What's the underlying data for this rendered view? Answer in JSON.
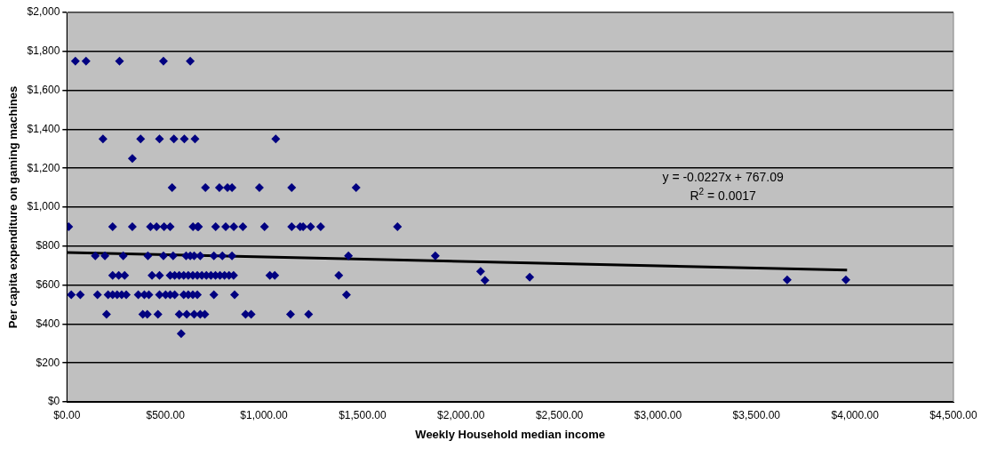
{
  "chart_data": {
    "type": "scatter",
    "xlabel": "Weekly Household median income",
    "ylabel": "Per capita expenditure on gaming machines",
    "series": [
      {
        "color": "#000080",
        "marker": "diamond",
        "x": [
          43,
          97,
          267,
          490,
          626,
          183,
          374,
          470,
          543,
          596,
          650,
          1060,
          332,
          534,
          703,
          774,
          815,
          838,
          977,
          1141,
          1468,
          9,
          232,
          332,
          424,
          455,
          493,
          524,
          640,
          663,
          668,
          755,
          806,
          847,
          893,
          1003,
          1141,
          1184,
          1199,
          1237,
          1288,
          1678,
          144,
          193,
          286,
          411,
          490,
          539,
          605,
          626,
          646,
          677,
          746,
          789,
          838,
          1429,
          1870,
          232,
          263,
          293,
          432,
          470,
          524,
          547,
          570,
          593,
          616,
          639,
          662,
          685,
          708,
          731,
          754,
          777,
          800,
          823,
          846,
          1030,
          1055,
          1380,
          22,
          68,
          155,
          209,
          232,
          255,
          278,
          301,
          362,
          393,
          416,
          470,
          501,
          524,
          547,
          593,
          616,
          639,
          662,
          746,
          851,
          1419,
          201,
          385,
          408,
          462,
          570,
          608,
          646,
          677,
          700,
          907,
          935,
          1135,
          1227,
          580,
          2100,
          2122,
          2349,
          3656,
          3954
        ],
        "values": [
          1750,
          1750,
          1750,
          1750,
          1750,
          1350,
          1350,
          1350,
          1350,
          1350,
          1350,
          1350,
          1250,
          1100,
          1100,
          1100,
          1100,
          1100,
          1100,
          1100,
          1100,
          900,
          900,
          900,
          900,
          900,
          900,
          900,
          900,
          900,
          900,
          900,
          900,
          900,
          900,
          900,
          900,
          900,
          900,
          900,
          900,
          900,
          750,
          750,
          750,
          750,
          750,
          750,
          750,
          750,
          750,
          750,
          750,
          750,
          750,
          750,
          750,
          650,
          650,
          650,
          650,
          650,
          650,
          650,
          650,
          650,
          650,
          650,
          650,
          650,
          650,
          650,
          650,
          650,
          650,
          650,
          650,
          650,
          650,
          650,
          550,
          550,
          550,
          550,
          550,
          550,
          550,
          550,
          550,
          550,
          550,
          550,
          550,
          550,
          550,
          550,
          550,
          550,
          550,
          550,
          550,
          550,
          450,
          450,
          450,
          450,
          450,
          450,
          450,
          450,
          450,
          450,
          450,
          450,
          450,
          350,
          670,
          625,
          640,
          627,
          627
        ]
      },
      {
        "type": "line",
        "color": "#000000",
        "marker": "none",
        "x": [
          0,
          3960
        ],
        "values": [
          767,
          677
        ]
      }
    ],
    "xlim": [
      0,
      4500
    ],
    "xticks": [
      {
        "value": 0,
        "label": "$0.00"
      },
      {
        "value": 500,
        "label": "$500.00"
      },
      {
        "value": 1000,
        "label": "$1,000.00"
      },
      {
        "value": 1500,
        "label": "$1,500.00"
      },
      {
        "value": 2000,
        "label": "$2,000.00"
      },
      {
        "value": 2500,
        "label": "$2,500.00"
      },
      {
        "value": 3000,
        "label": "$3,000.00"
      },
      {
        "value": 3500,
        "label": "$3,500.00"
      },
      {
        "value": 4000,
        "label": "$4,000.00"
      },
      {
        "value": 4500,
        "label": "$4,500.00"
      }
    ],
    "ylim": [
      0,
      2000
    ],
    "yticks": [
      {
        "value": 0,
        "label": "$0"
      },
      {
        "value": 200,
        "label": "$200"
      },
      {
        "value": 400,
        "label": "$400"
      },
      {
        "value": 600,
        "label": "$600"
      },
      {
        "value": 800,
        "label": "$800"
      },
      {
        "value": 1000,
        "label": "$1,000"
      },
      {
        "value": 1200,
        "label": "$1,200"
      },
      {
        "value": 1400,
        "label": "$1,400"
      },
      {
        "value": 1600,
        "label": "$1,600"
      },
      {
        "value": 1800,
        "label": "$1,800"
      },
      {
        "value": 2000,
        "label": "$2,000"
      }
    ],
    "grid": "y",
    "legend": false,
    "annotations": [
      "y = -0.0227x + 767.09",
      "R$^{2}$ = 0.0017"
    ]
  }
}
